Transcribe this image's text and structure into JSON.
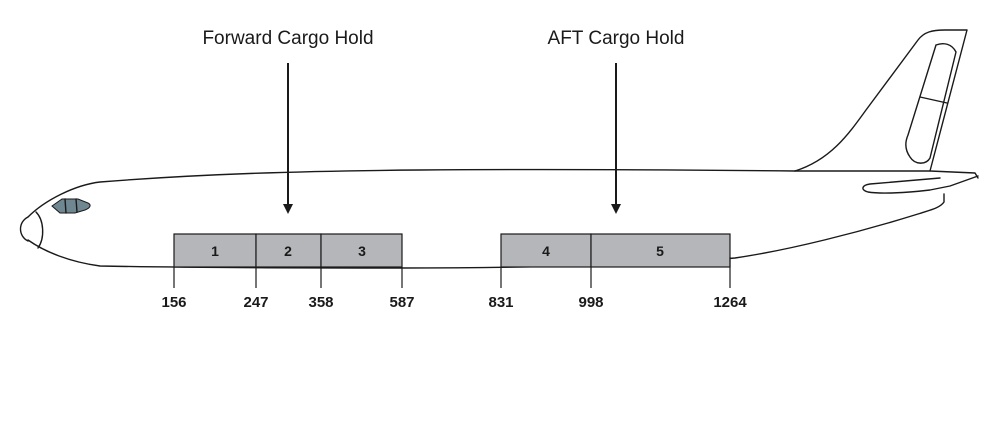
{
  "holds": [
    {
      "title": "Forward Cargo Hold",
      "compartments": [
        {
          "label": "1",
          "from": 156,
          "to": 247
        },
        {
          "label": "2",
          "from": 247,
          "to": 358
        },
        {
          "label": "3",
          "from": 358,
          "to": 587
        }
      ]
    },
    {
      "title": "AFT Cargo Hold",
      "compartments": [
        {
          "label": "4",
          "from": 831,
          "to": 998
        },
        {
          "label": "5",
          "from": 998,
          "to": 1264
        }
      ]
    }
  ],
  "stations": [
    "156",
    "247",
    "358",
    "587",
    "831",
    "998",
    "1264"
  ],
  "colors": {
    "compartment_fill": "#b5b6b9",
    "cockpit_window": "#6f8790",
    "outline": "#1a1a1a"
  }
}
